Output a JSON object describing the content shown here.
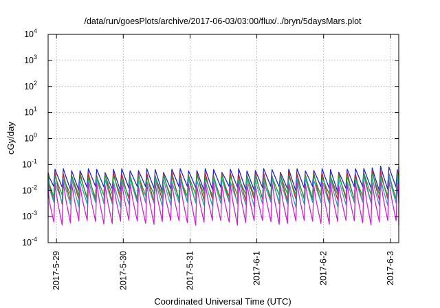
{
  "chart_data": {
    "type": "line",
    "title": "/data/run/goesPlots/archive/2017-06-03/03:00/flux/../bryn/5daysMars.plot",
    "xlabel": "Coordinated Universal Time (UTC)",
    "ylabel": "cGy/day",
    "yscale": "log",
    "ylim": [
      0.0001,
      10000
    ],
    "y_ticks": [
      {
        "base": "10",
        "exp": "-4",
        "value": 0.0001
      },
      {
        "base": "10",
        "exp": "-3",
        "value": 0.001
      },
      {
        "base": "10",
        "exp": "-2",
        "value": 0.01
      },
      {
        "base": "10",
        "exp": "-1",
        "value": 0.1
      },
      {
        "base": "10",
        "exp": "0",
        "value": 1
      },
      {
        "base": "10",
        "exp": "1",
        "value": 10
      },
      {
        "base": "10",
        "exp": "2",
        "value": 100
      },
      {
        "base": "10",
        "exp": "3",
        "value": 1000
      },
      {
        "base": "10",
        "exp": "4",
        "value": 10000
      }
    ],
    "xlim": [
      "2017-05-28 21:00",
      "2017-06-03 03:00"
    ],
    "x_ticks": [
      "2017-5-29",
      "2017-5-30",
      "2017-5-31",
      "2017-6-1",
      "2017-6-2",
      "2017-6-3"
    ],
    "grid": true,
    "legend": "none",
    "oscillation_period_hours": 3,
    "series": [
      {
        "color": "#2222cc",
        "peak_max": 0.07,
        "trough_min": 0.012
      },
      {
        "color": "#cc2222",
        "peak_max": 0.05,
        "trough_min": 0.004
      },
      {
        "color": "#2a9a2a",
        "peak_max": 0.04,
        "trough_min": 0.006
      },
      {
        "color": "#22aaaa",
        "peak_max": 0.03,
        "trough_min": 0.003
      },
      {
        "color": "#cc22cc",
        "peak_max": 0.02,
        "trough_min": 0.0006
      }
    ]
  }
}
